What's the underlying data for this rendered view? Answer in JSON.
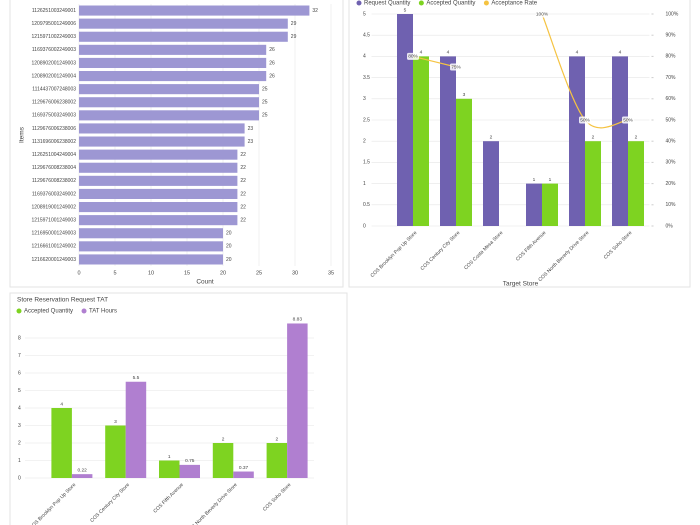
{
  "chart_data": [
    {
      "type": "bar",
      "orientation": "horizontal",
      "categories": [
        "1126251003249001",
        "1209795001249006",
        "1215971002249003",
        "1169376002249003",
        "1208902001249003",
        "1208902001249004",
        "1114437007248003",
        "1129676006238002",
        "1169375003249003",
        "1129676006238006",
        "1131696006238002",
        "1126251004249004",
        "1129676008238004",
        "1129676008238002",
        "1169376003249002",
        "1208919001249002",
        "1215971001249003",
        "1216950001249003",
        "1216661001249002",
        "1216620001249003"
      ],
      "values": [
        32,
        29,
        29,
        26,
        26,
        26,
        25,
        25,
        25,
        23,
        23,
        22,
        22,
        22,
        22,
        22,
        22,
        20,
        20,
        20
      ],
      "color": "#9d97d3",
      "xlim": [
        0,
        35
      ],
      "xticks": [
        0,
        5,
        10,
        15,
        20,
        25,
        30,
        35
      ],
      "xlabel": "Count",
      "ylabel": "Items",
      "grid": true
    },
    {
      "type": "bar",
      "categories": [
        "COS Brooklyn Pop Up Store",
        "COS Century City Store",
        "COS Costa Mesa Store",
        "COS Fifth Avenue",
        "COS North Beverly Drive Store",
        "COS Soho Store"
      ],
      "series": [
        {
          "name": "Request Quantity",
          "color": "#6f61b0",
          "values": [
            5,
            4,
            2,
            1,
            4,
            4
          ]
        },
        {
          "name": "Accepted Quantity",
          "color": "#7ed321",
          "values": [
            4,
            3,
            null,
            1,
            2,
            2
          ]
        },
        {
          "name": "Acceptance Rate",
          "color": "#f5c342",
          "type": "line",
          "axis": "y2",
          "values": [
            80,
            75,
            null,
            100,
            50,
            50
          ],
          "value_labels": [
            "80%",
            "75%",
            null,
            "100%",
            "50%",
            "50%"
          ]
        }
      ],
      "ylim": [
        0,
        5
      ],
      "yticks": [
        0,
        0.5,
        1,
        1.5,
        2,
        2.5,
        3,
        3.5,
        4,
        4.5,
        5
      ],
      "y2lim": [
        0,
        100
      ],
      "y2ticks": [
        {
          "value": 0,
          "label": "0%"
        },
        {
          "value": 10,
          "label": "10%"
        },
        {
          "value": 20,
          "label": "20%"
        },
        {
          "value": 30,
          "label": "30%"
        },
        {
          "value": 40,
          "label": "40%"
        },
        {
          "value": 50,
          "label": "50%"
        },
        {
          "value": 60,
          "label": "60%"
        },
        {
          "value": 70,
          "label": "70%"
        },
        {
          "value": 80,
          "label": "80%"
        },
        {
          "value": 90,
          "label": "90%"
        },
        {
          "value": 100,
          "label": "100%"
        }
      ],
      "xlabel": "Target Store",
      "grid": true,
      "legend": "top"
    },
    {
      "type": "bar",
      "title": "Store Reservation Request TAT",
      "categories": [
        "COS Brooklyn Pop Up Store",
        "COS Century City Store",
        "COS Fifth Avenue",
        "COS North Beverly Drive Store",
        "COS Soho Store"
      ],
      "series": [
        {
          "name": "Accepted Quantity",
          "color": "#7ed321",
          "values": [
            4,
            3,
            1,
            2,
            2
          ]
        },
        {
          "name": "TAT Hours",
          "color": "#b07fd0",
          "values": [
            0.22,
            5.5,
            0.75,
            0.37,
            8.83
          ]
        }
      ],
      "ylim": [
        0,
        9
      ],
      "yticks": [
        0,
        1,
        2,
        3,
        4,
        5,
        6,
        7,
        8
      ],
      "grid": true,
      "legend": "top"
    }
  ]
}
